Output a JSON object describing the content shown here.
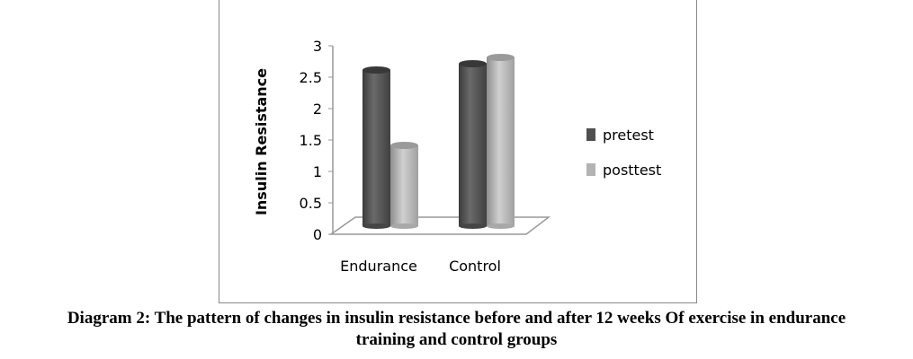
{
  "chart_data": {
    "type": "bar",
    "title": "",
    "xlabel": "",
    "ylabel": "Insulin Resistance",
    "ylim": [
      0,
      3
    ],
    "yticks": [
      "0",
      "0.5",
      "1",
      "1.5",
      "2",
      "2.5",
      "3"
    ],
    "categories": [
      "Endurance",
      "Control"
    ],
    "series": [
      {
        "name": "pretest",
        "values": [
          2.6,
          2.7
        ],
        "color": "#4f4f4f"
      },
      {
        "name": "posttest",
        "values": [
          1.4,
          2.8
        ],
        "color": "#b3b3b3"
      }
    ],
    "legend_position": "right",
    "grid": false
  },
  "caption": {
    "line1": "Diagram 2: The pattern of changes in insulin resistance before and after 12 weeks Of exercise in endurance",
    "line2": "training and control groups"
  }
}
